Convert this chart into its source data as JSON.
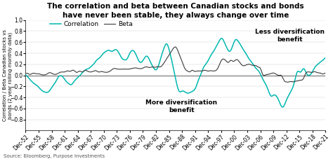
{
  "title": "The correlation and beta between Canadian stocks and bonds\nhave never been stable, they always change over time",
  "ylabel": "Correlation / Beta Canadian stocks vs\nbonds (2 year rolling monthly data)",
  "source": "Source: Bloomberg, Purpose Investments",
  "ylim": [
    -1.0,
    1.0
  ],
  "yticks": [
    -0.8,
    -0.6,
    -0.4,
    -0.2,
    0.0,
    0.2,
    0.4,
    0.6,
    0.8,
    1.0
  ],
  "xtick_labels": [
    "Dec-52",
    "Dec-55",
    "Dec-58",
    "Dec-61",
    "Dec-64",
    "Dec-67",
    "Dec-70",
    "Dec-73",
    "Dec-76",
    "Dec-79",
    "Dec-82",
    "Dec-85",
    "Dec-88",
    "Dec-91",
    "Dec-94",
    "Dec-97",
    "Dec-00",
    "Dec-03",
    "Dec-06",
    "Dec-09",
    "Dec-12",
    "Dec-15",
    "Dec-18",
    "Dec-21"
  ],
  "correlation_color": "#00b8b0",
  "beta_color": "#3a3a3a",
  "legend_labels": [
    "Correlation",
    "Beta"
  ],
  "annotation1": "Less diversification\nbenefit",
  "annotation2": "More diversification\nbenefit",
  "title_fontsize": 7.5,
  "axis_fontsize": 5.5,
  "ylabel_fontsize": 5.0,
  "legend_fontsize": 6.5,
  "annotation_fontsize": 6.5,
  "bg_color": "#ffffff",
  "linewidth_corr": 1.1,
  "linewidth_beta": 0.8
}
